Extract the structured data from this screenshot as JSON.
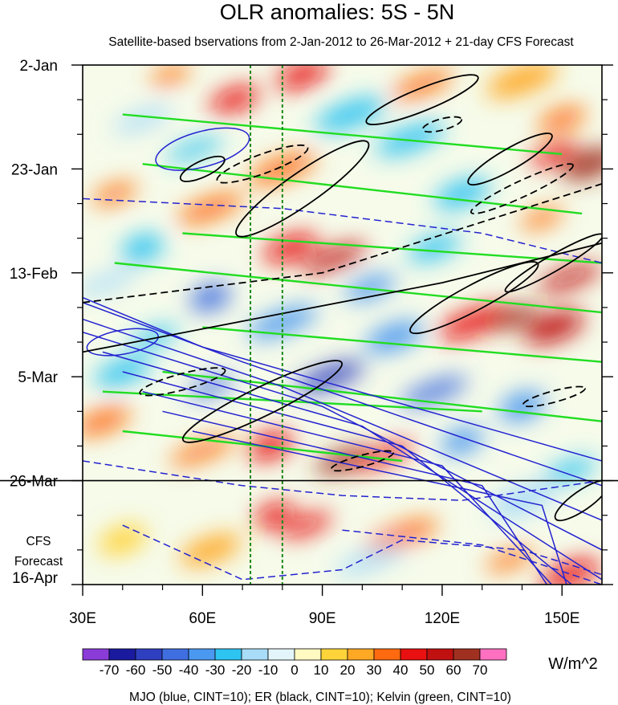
{
  "chart_data": {
    "type": "heatmap",
    "title": "OLR anomalies: 5S - 5N",
    "subtitle": "Satellite-based bservations from 2-Jan-2012 to 26-Mar-2012 + 21-day CFS Forecast",
    "x_ticks": [
      {
        "value": 30,
        "label": "30E"
      },
      {
        "value": 60,
        "label": "60E"
      },
      {
        "value": 90,
        "label": "90E"
      },
      {
        "value": 120,
        "label": "120E"
      },
      {
        "value": 150,
        "label": "150E"
      }
    ],
    "xlim": [
      30,
      160
    ],
    "y_ticks": [
      {
        "day": 0,
        "label": "2-Jan"
      },
      {
        "day": 21,
        "label": "23-Jan"
      },
      {
        "day": 42,
        "label": "13-Feb"
      },
      {
        "day": 63,
        "label": "5-Mar"
      },
      {
        "day": 84,
        "label": "26-Mar"
      },
      {
        "day": 105,
        "label": "16-Apr"
      }
    ],
    "ylim_days": [
      0,
      105
    ],
    "forecast_start_day": 84,
    "forecast_label": [
      "CFS",
      "Forecast"
    ],
    "reference_longitudes": [
      72,
      80
    ],
    "colorbar": {
      "labels": [
        "-70",
        "-60",
        "-50",
        "-40",
        "-30",
        "-20",
        "-10",
        "0",
        "10",
        "20",
        "30",
        "40",
        "50",
        "60",
        "70"
      ],
      "colors": [
        "#8a3bd8",
        "#1a1a9e",
        "#2e3fc0",
        "#3f6ee0",
        "#4a98f0",
        "#2ec4f2",
        "#a8dcf8",
        "#e3f5fb",
        "#fff9c2",
        "#ffd43a",
        "#ffa824",
        "#ff6a10",
        "#e81010",
        "#c01010",
        "#a03020",
        "#ff70c0"
      ],
      "units": "W/m^2"
    },
    "footer": "MJO (blue, CINT=10); ER (black, CINT=10); Kelvin (green, CINT=10)",
    "series_colors": {
      "MJO": "#2323d0",
      "ER": "#000000",
      "Kelvin": "#22dd22"
    },
    "anomaly_blobs": [
      {
        "lon": 52,
        "day": 2,
        "v": 30
      },
      {
        "lon": 85,
        "day": 2,
        "v": 40
      },
      {
        "lon": 115,
        "day": 4,
        "v": 30
      },
      {
        "lon": 140,
        "day": 3,
        "v": 20
      },
      {
        "lon": 68,
        "day": 7,
        "v": 40
      },
      {
        "lon": 45,
        "day": 11,
        "v": -20
      },
      {
        "lon": 97,
        "day": 10,
        "v": -30
      },
      {
        "lon": 150,
        "day": 11,
        "v": 30
      },
      {
        "lon": 58,
        "day": 17,
        "v": -30
      },
      {
        "lon": 112,
        "day": 15,
        "v": -30
      },
      {
        "lon": 148,
        "day": 18,
        "v": 40
      },
      {
        "lon": 157,
        "day": 20,
        "v": 60
      },
      {
        "lon": 80,
        "day": 21,
        "v": 30
      },
      {
        "lon": 38,
        "day": 26,
        "v": 30
      },
      {
        "lon": 125,
        "day": 26,
        "v": -30
      },
      {
        "lon": 62,
        "day": 29,
        "v": 30
      },
      {
        "lon": 145,
        "day": 31,
        "v": 30
      },
      {
        "lon": 82,
        "day": 37,
        "v": 40
      },
      {
        "lon": 93,
        "day": 39,
        "v": 50
      },
      {
        "lon": 45,
        "day": 37,
        "v": -30
      },
      {
        "lon": 118,
        "day": 37,
        "v": -30
      },
      {
        "lon": 152,
        "day": 43,
        "v": 50
      },
      {
        "lon": 62,
        "day": 47,
        "v": -50
      },
      {
        "lon": 102,
        "day": 45,
        "v": -40
      },
      {
        "lon": 36,
        "day": 44,
        "v": -20
      },
      {
        "lon": 128,
        "day": 52,
        "v": 40
      },
      {
        "lon": 138,
        "day": 51,
        "v": 60
      },
      {
        "lon": 148,
        "day": 53,
        "v": 50
      },
      {
        "lon": 80,
        "day": 52,
        "v": -40
      },
      {
        "lon": 48,
        "day": 55,
        "v": -30
      },
      {
        "lon": 108,
        "day": 55,
        "v": -40
      },
      {
        "lon": 92,
        "day": 63,
        "v": -60
      },
      {
        "lon": 62,
        "day": 65,
        "v": -50
      },
      {
        "lon": 40,
        "day": 62,
        "v": -30
      },
      {
        "lon": 118,
        "day": 66,
        "v": -50
      },
      {
        "lon": 140,
        "day": 69,
        "v": -40
      },
      {
        "lon": 35,
        "day": 72,
        "v": 30
      },
      {
        "lon": 60,
        "day": 78,
        "v": 30
      },
      {
        "lon": 77,
        "day": 77,
        "v": 40
      },
      {
        "lon": 95,
        "day": 80,
        "v": 60
      },
      {
        "lon": 105,
        "day": 79,
        "v": 40
      },
      {
        "lon": 125,
        "day": 76,
        "v": -40
      },
      {
        "lon": 152,
        "day": 82,
        "v": -30
      },
      {
        "lon": 140,
        "day": 88,
        "v": -20
      },
      {
        "lon": 78,
        "day": 91,
        "v": 40
      },
      {
        "lon": 86,
        "day": 93,
        "v": 40
      },
      {
        "lon": 62,
        "day": 98,
        "v": 20
      },
      {
        "lon": 110,
        "day": 95,
        "v": 30
      },
      {
        "lon": 137,
        "day": 100,
        "v": 30
      },
      {
        "lon": 152,
        "day": 103,
        "v": 40
      },
      {
        "lon": 102,
        "day": 100,
        "v": -20
      },
      {
        "lon": 40,
        "day": 96,
        "v": 10
      }
    ]
  }
}
